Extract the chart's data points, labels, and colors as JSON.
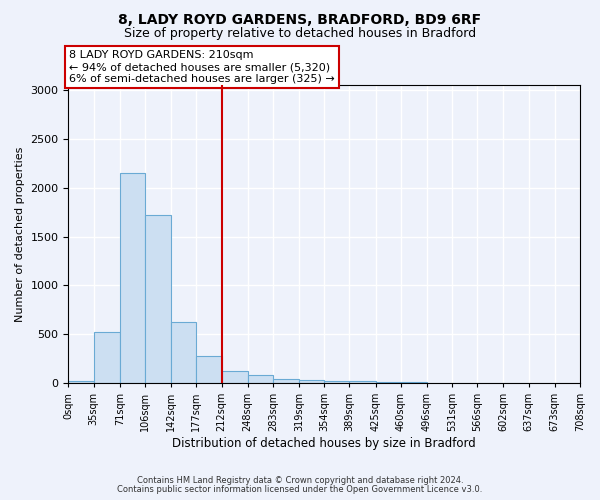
{
  "title1": "8, LADY ROYD GARDENS, BRADFORD, BD9 6RF",
  "title2": "Size of property relative to detached houses in Bradford",
  "xlabel": "Distribution of detached houses by size in Bradford",
  "ylabel": "Number of detached properties",
  "bin_edges": [
    0,
    35,
    71,
    106,
    142,
    177,
    212,
    248,
    283,
    319,
    354,
    389,
    425,
    460,
    496,
    531,
    566,
    602,
    637,
    673,
    708
  ],
  "bar_heights": [
    20,
    520,
    2150,
    1720,
    630,
    280,
    120,
    80,
    45,
    35,
    25,
    20,
    15,
    15,
    0,
    0,
    0,
    0,
    0,
    0
  ],
  "bar_fill": "#ccdff2",
  "bar_edge": "#6aaad4",
  "vline_x": 212,
  "vline_color": "#cc0000",
  "ylim": [
    0,
    3050
  ],
  "yticks": [
    0,
    500,
    1000,
    1500,
    2000,
    2500,
    3000
  ],
  "annotation_text": "8 LADY ROYD GARDENS: 210sqm\n← 94% of detached houses are smaller (5,320)\n6% of semi-detached houses are larger (325) →",
  "annotation_box_color": "#ffffff",
  "annotation_box_edge": "#cc0000",
  "footer1": "Contains HM Land Registry data © Crown copyright and database right 2024.",
  "footer2": "Contains public sector information licensed under the Open Government Licence v3.0.",
  "background_color": "#eef2fb",
  "grid_color": "#ffffff"
}
